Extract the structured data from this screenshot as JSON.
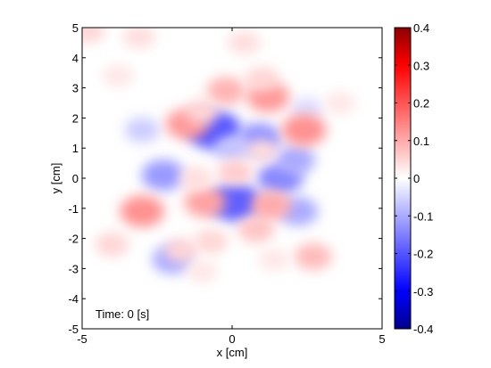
{
  "chart_data": {
    "type": "heatmap",
    "title": "",
    "xlabel": "x [cm]",
    "ylabel": "y [cm]",
    "xlim": [
      -5,
      5
    ],
    "ylim": [
      -5,
      5
    ],
    "x_ticks": [
      {
        "value": -5,
        "label": "-5"
      },
      {
        "value": 0,
        "label": "0"
      },
      {
        "value": 5,
        "label": "5"
      }
    ],
    "y_ticks": [
      {
        "value": 5,
        "label": "5"
      },
      {
        "value": 4,
        "label": "4"
      },
      {
        "value": 3,
        "label": "3"
      },
      {
        "value": 2,
        "label": "2"
      },
      {
        "value": 1,
        "label": "1"
      },
      {
        "value": 0,
        "label": "0"
      },
      {
        "value": -1,
        "label": "-1"
      },
      {
        "value": -2,
        "label": "-2"
      },
      {
        "value": -3,
        "label": "-3"
      },
      {
        "value": -4,
        "label": "-4"
      },
      {
        "value": -5,
        "label": "-5"
      }
    ],
    "annotation": "Time: 0 [s]",
    "colorbar": {
      "range": [
        -0.4,
        0.4
      ],
      "colormap": "blue-white-red",
      "low_color": "#00008c",
      "mid_color": "#ffffff",
      "high_color": "#8c0000",
      "ticks": [
        {
          "value": 0.4,
          "label": "0.4"
        },
        {
          "value": 0.3,
          "label": "0.3"
        },
        {
          "value": 0.2,
          "label": "0.2"
        },
        {
          "value": 0.1,
          "label": "0.1"
        },
        {
          "value": 0,
          "label": "0"
        },
        {
          "value": -0.1,
          "label": "-0.1"
        },
        {
          "value": -0.2,
          "label": "-0.2"
        },
        {
          "value": -0.3,
          "label": "-0.3"
        },
        {
          "value": -0.4,
          "label": "-0.4"
        }
      ]
    },
    "features": [
      {
        "x": -0.6,
        "y": 1.6,
        "value": -0.2
      },
      {
        "x": 0.1,
        "y": -0.8,
        "value": -0.19
      },
      {
        "x": 0.9,
        "y": 1.3,
        "value": -0.13
      },
      {
        "x": 1.6,
        "y": 0.0,
        "value": -0.14
      },
      {
        "x": -2.3,
        "y": 0.1,
        "value": -0.12
      },
      {
        "x": -2.0,
        "y": -2.7,
        "value": -0.1
      },
      {
        "x": 2.1,
        "y": 0.6,
        "value": -0.1
      },
      {
        "x": 2.2,
        "y": -1.1,
        "value": -0.1
      },
      {
        "x": 0.0,
        "y": 1.0,
        "value": -0.07
      },
      {
        "x": 2.5,
        "y": 2.3,
        "value": -0.04
      },
      {
        "x": -3.0,
        "y": 1.6,
        "value": -0.06
      },
      {
        "x": -3.0,
        "y": -1.1,
        "value": 0.13
      },
      {
        "x": -1.5,
        "y": 1.8,
        "value": 0.12
      },
      {
        "x": -0.2,
        "y": 2.9,
        "value": 0.09
      },
      {
        "x": 1.2,
        "y": 2.7,
        "value": 0.12
      },
      {
        "x": 2.4,
        "y": 1.6,
        "value": 0.13
      },
      {
        "x": -0.9,
        "y": -0.8,
        "value": 0.11
      },
      {
        "x": 0.8,
        "y": -1.7,
        "value": 0.07
      },
      {
        "x": 1.3,
        "y": -0.9,
        "value": 0.1
      },
      {
        "x": 0.1,
        "y": 0.2,
        "value": 0.06
      },
      {
        "x": 1.0,
        "y": 0.9,
        "value": 0.04
      },
      {
        "x": -1.2,
        "y": 0.0,
        "value": 0.04
      },
      {
        "x": -1.0,
        "y": 2.2,
        "value": 0.05
      },
      {
        "x": -1.7,
        "y": -2.4,
        "value": 0.05
      },
      {
        "x": -0.7,
        "y": -2.1,
        "value": 0.05
      },
      {
        "x": 2.7,
        "y": -2.6,
        "value": 0.08
      },
      {
        "x": -3.8,
        "y": 3.4,
        "value": 0.03
      },
      {
        "x": -3.1,
        "y": 4.7,
        "value": 0.04
      },
      {
        "x": -4.8,
        "y": 4.9,
        "value": 0.05
      },
      {
        "x": 0.4,
        "y": 4.5,
        "value": 0.04
      },
      {
        "x": 1.0,
        "y": 3.3,
        "value": 0.05
      },
      {
        "x": -4.0,
        "y": -2.2,
        "value": 0.05
      },
      {
        "x": 3.6,
        "y": 2.5,
        "value": 0.03
      },
      {
        "x": -1.0,
        "y": -3.1,
        "value": 0.03
      },
      {
        "x": 1.4,
        "y": -2.7,
        "value": 0.03
      }
    ]
  }
}
